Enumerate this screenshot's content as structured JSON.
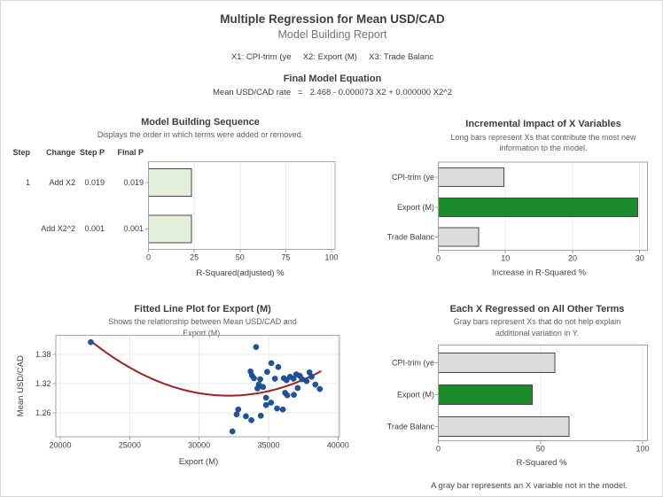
{
  "header": {
    "title": "Multiple Regression for Mean USD/CAD",
    "subtitle": "Model Building Report",
    "predictors": "X1: CPI-trim (ye     X2: Export (M)     X3: Trade Balanc",
    "equation_title": "Final Model Equation",
    "equation": "Mean USD/CAD rate   =   2.468 - 0.000073 X2 + 0.000000 X2^2"
  },
  "colors": {
    "green": "#1a8a2a",
    "gray_bar": "#dcdcdc",
    "light_green": "#e4efd9",
    "bar_border": "#474747",
    "point_blue": "#1e539e",
    "point_edge": "#163e78",
    "fit_red": "#9b2222",
    "frame": "#a3a3a3",
    "grid": "#e9e9e9"
  },
  "chart_data": [
    {
      "id": "sequence",
      "type": "bar",
      "title": "Model Building Sequence",
      "subtitle_lines": [
        "Displays the order in which terms were added or removed."
      ],
      "table": {
        "headers": [
          "Step",
          "Change",
          "Step P",
          "Final P"
        ],
        "rows": [
          [
            "1",
            "Add X2",
            "0.019",
            "0.019"
          ],
          [
            "",
            "Add X2^2",
            "0.001",
            "0.001"
          ]
        ]
      },
      "categories": [
        "0.019",
        "0.001"
      ],
      "values": [
        23.5,
        23.5
      ],
      "bar_colors": [
        "light_green",
        "light_green"
      ],
      "xticks": [
        0,
        25,
        50,
        75,
        100
      ],
      "xlabel": "R-Squared(adjusted) %",
      "xlim": [
        0,
        102
      ]
    },
    {
      "id": "incremental",
      "type": "bar",
      "title": "Incremental Impact of X Variables",
      "subtitle_lines": [
        "Long bars represent Xs that contribute the most new",
        "information to the model."
      ],
      "categories": [
        "CPI-trim (ye",
        "Export (M)",
        "Trade Balanc"
      ],
      "values": [
        9.8,
        29.7,
        6.0
      ],
      "bar_colors": [
        "gray_bar",
        "green",
        "gray_bar"
      ],
      "xticks": [
        0,
        10,
        20,
        30
      ],
      "xlabel": "Increase in R-Squared %",
      "xlim": [
        0,
        31.4
      ]
    },
    {
      "id": "fitted",
      "type": "scatter",
      "title": "Fitted Line Plot for Export (M)",
      "subtitle_lines": [
        "Shows the relationship between Mean USD/CAD and",
        "Export (M)."
      ],
      "xlabel": "Export (M)",
      "ylabel": "Mean USD/CAD",
      "xticks": [
        20000,
        25000,
        30000,
        35000,
        40000
      ],
      "yticks": [
        1.26,
        1.32,
        1.38
      ],
      "xlim": [
        19681,
        40108
      ],
      "ylim": [
        1.211,
        1.419
      ],
      "points": [
        [
          22200,
          1.405
        ],
        [
          34100,
          1.395
        ],
        [
          35200,
          1.362
        ],
        [
          35700,
          1.354
        ],
        [
          33700,
          1.345
        ],
        [
          33800,
          1.337
        ],
        [
          33950,
          1.331
        ],
        [
          34900,
          1.344
        ],
        [
          34400,
          1.329
        ],
        [
          34300,
          1.318
        ],
        [
          34600,
          1.313
        ],
        [
          34200,
          1.31
        ],
        [
          35460,
          1.33
        ],
        [
          36100,
          1.331
        ],
        [
          36300,
          1.327
        ],
        [
          36550,
          1.334
        ],
        [
          36800,
          1.33
        ],
        [
          37000,
          1.339
        ],
        [
          37250,
          1.336
        ],
        [
          37420,
          1.329
        ],
        [
          37740,
          1.325
        ],
        [
          37950,
          1.343
        ],
        [
          38100,
          1.334
        ],
        [
          38370,
          1.318
        ],
        [
          38690,
          1.309
        ],
        [
          36190,
          1.301
        ],
        [
          36350,
          1.296
        ],
        [
          36820,
          1.297
        ],
        [
          37100,
          1.311
        ],
        [
          34820,
          1.291
        ],
        [
          35180,
          1.281
        ],
        [
          35610,
          1.269
        ],
        [
          36030,
          1.267
        ],
        [
          34820,
          1.276
        ],
        [
          34440,
          1.254
        ],
        [
          33760,
          1.245
        ],
        [
          32820,
          1.267
        ],
        [
          32700,
          1.257
        ],
        [
          33370,
          1.253
        ],
        [
          32400,
          1.222
        ]
      ],
      "fit_line": {
        "type": "quadratic",
        "b0": 2.468,
        "b1": -7.3e-05,
        "b2": 1.136e-09,
        "x_domain": [
          22200,
          38750
        ]
      }
    },
    {
      "id": "regressed",
      "type": "bar",
      "title": "Each X Regressed on All Other Terms",
      "subtitle_lines": [
        "Gray bars represent Xs that do not help explain",
        "additional variation in Y."
      ],
      "categories": [
        "CPI-trim (ye",
        "Export (M)",
        "Trade Balanc"
      ],
      "values": [
        57.0,
        46.0,
        64.0
      ],
      "bar_colors": [
        "gray_bar",
        "green",
        "gray_bar"
      ],
      "xticks": [
        0,
        50,
        100
      ],
      "xlabel": "R-Squared %",
      "xlim": [
        0,
        102
      ],
      "note": "A gray bar represents an X variable not in the model."
    }
  ]
}
